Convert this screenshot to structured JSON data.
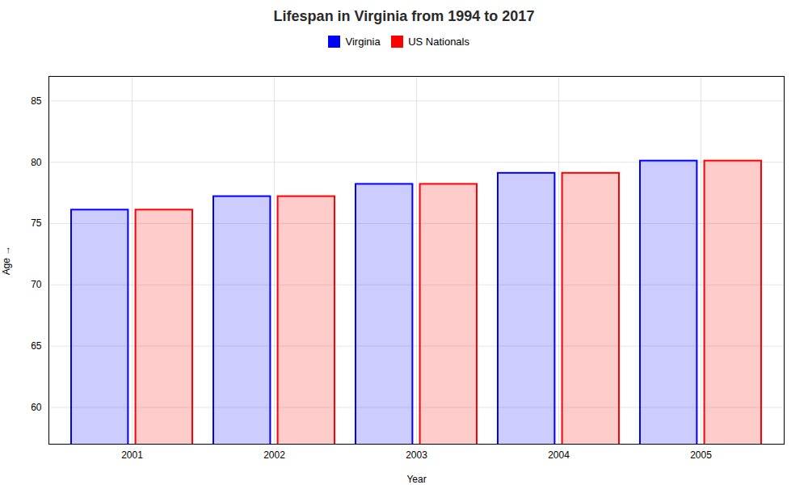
{
  "chart_data": {
    "type": "bar",
    "title": "Lifespan in Virginia from 1994 to 2017",
    "xlabel": "Year",
    "ylabel": "Age",
    "categories": [
      "2001",
      "2002",
      "2003",
      "2004",
      "2005"
    ],
    "series": [
      {
        "name": "Virginia",
        "color": "#0000ff",
        "values": [
          76.1,
          77.2,
          78.2,
          79.1,
          80.1
        ]
      },
      {
        "name": "US Nationals",
        "color": "#ff0000",
        "values": [
          76.1,
          77.2,
          78.2,
          79.1,
          80.1
        ]
      }
    ],
    "ylim": [
      57,
      87
    ],
    "yticks": [
      60,
      65,
      70,
      75,
      80,
      85
    ],
    "grid": true,
    "legend": "top"
  }
}
